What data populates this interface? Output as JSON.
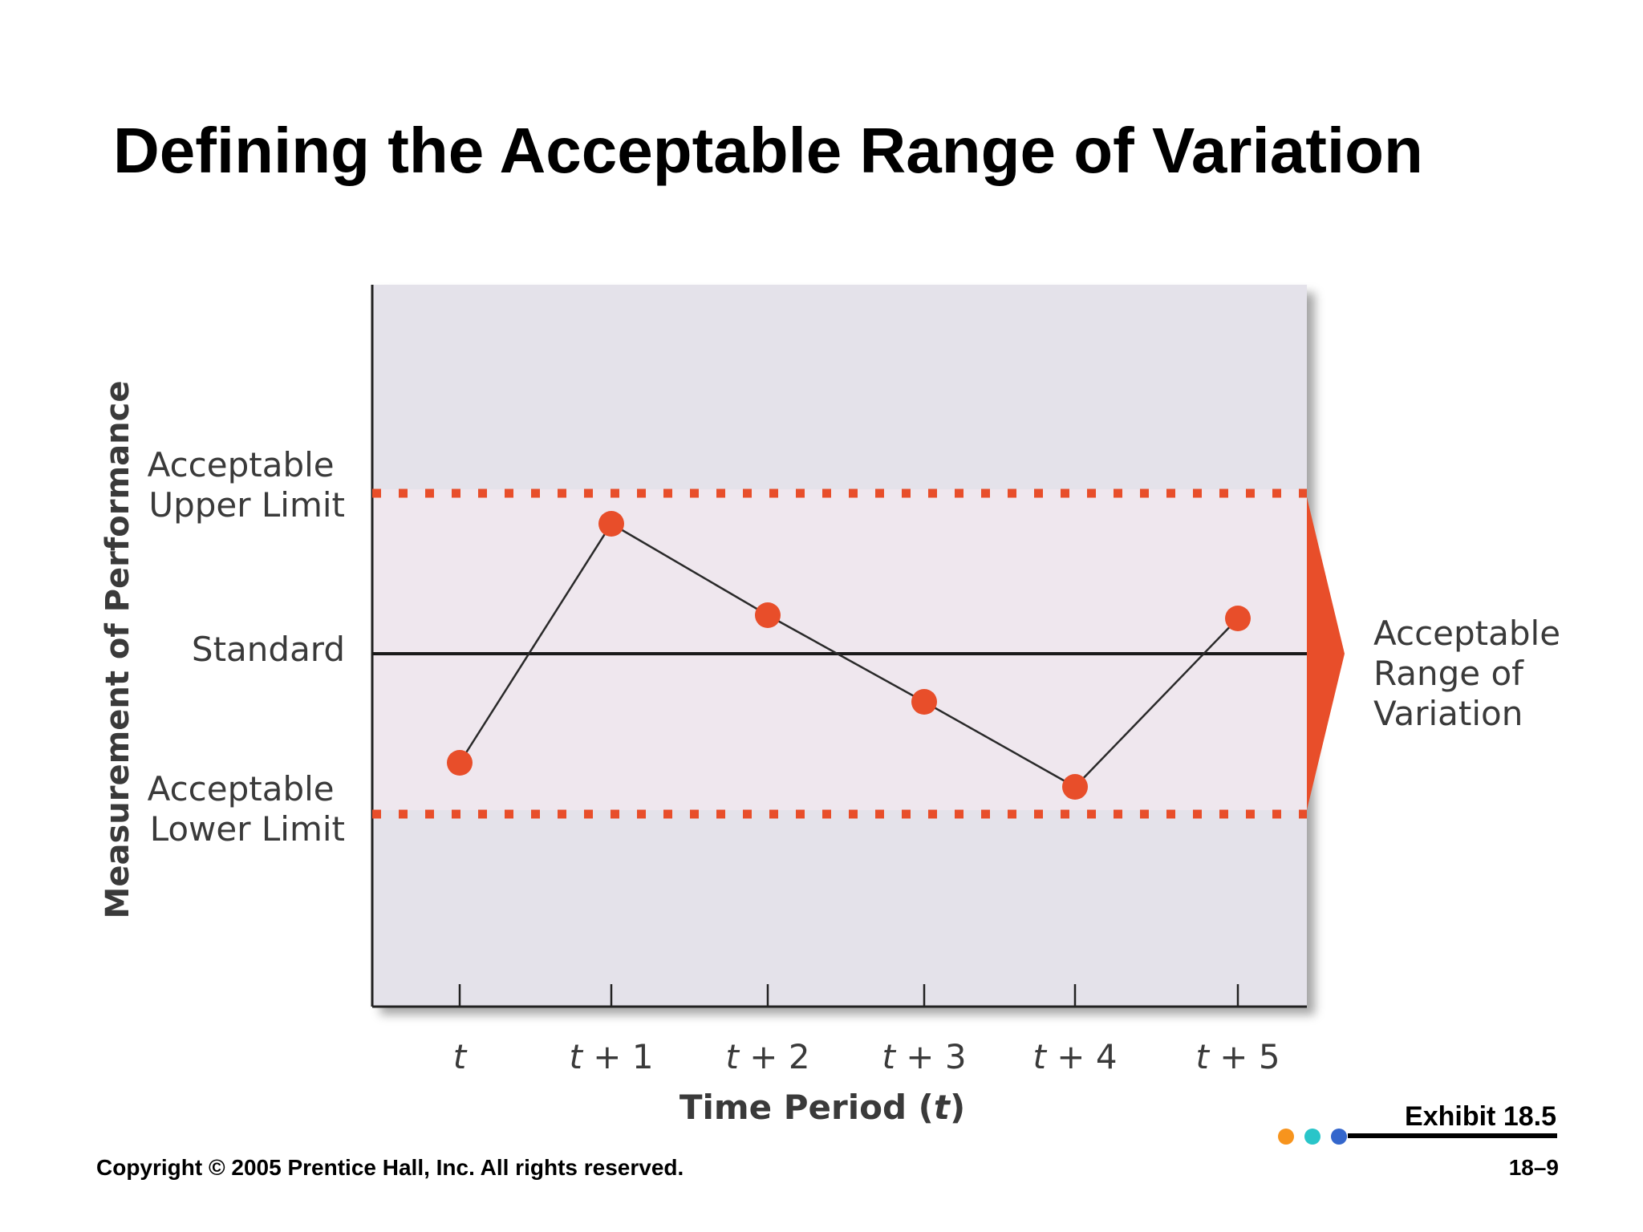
{
  "slide": {
    "title": "Defining the Acceptable Range of Variation",
    "exhibit": "Exhibit 18.5",
    "copyright": "Copyright © 2005 Prentice Hall, Inc. All rights reserved.",
    "page_number": "18–9",
    "accent_dots": [
      "#f7941d",
      "#29c5c9",
      "#3366cc"
    ]
  },
  "chart_data": {
    "type": "line",
    "ylabel": "Measurement of Performance",
    "xlabel": "Time Period (t)",
    "xlabel_parts": {
      "text": "Time Period (",
      "var": "t",
      "close": ")"
    },
    "categories": [
      {
        "var": "t",
        "suffix": ""
      },
      {
        "var": "t",
        "suffix": " + 1"
      },
      {
        "var": "t",
        "suffix": " + 2"
      },
      {
        "var": "t",
        "suffix": " + 3"
      },
      {
        "var": "t",
        "suffix": " + 4"
      },
      {
        "var": "t",
        "suffix": " + 5"
      }
    ],
    "values": [
      -0.68,
      0.81,
      0.24,
      -0.3,
      -0.83,
      0.22
    ],
    "ylim": [
      -2.2,
      2.2
    ],
    "standard": {
      "value": 0,
      "label": "Standard"
    },
    "upper_limit": {
      "value": 1,
      "label_lines": [
        "Acceptable",
        "Upper Limit"
      ]
    },
    "lower_limit": {
      "value": -1,
      "label_lines": [
        "Acceptable",
        "Lower Limit"
      ]
    },
    "range_annotation": [
      "Acceptable",
      "Range of",
      "Variation"
    ],
    "colors": {
      "marker": "#e84e2a",
      "limit_line": "#e84e2a",
      "plot_bg": "#e4e2ea",
      "band_bg": "#efe7ee",
      "arrow": "#e84e2a"
    },
    "grid": false,
    "legend": "none"
  }
}
